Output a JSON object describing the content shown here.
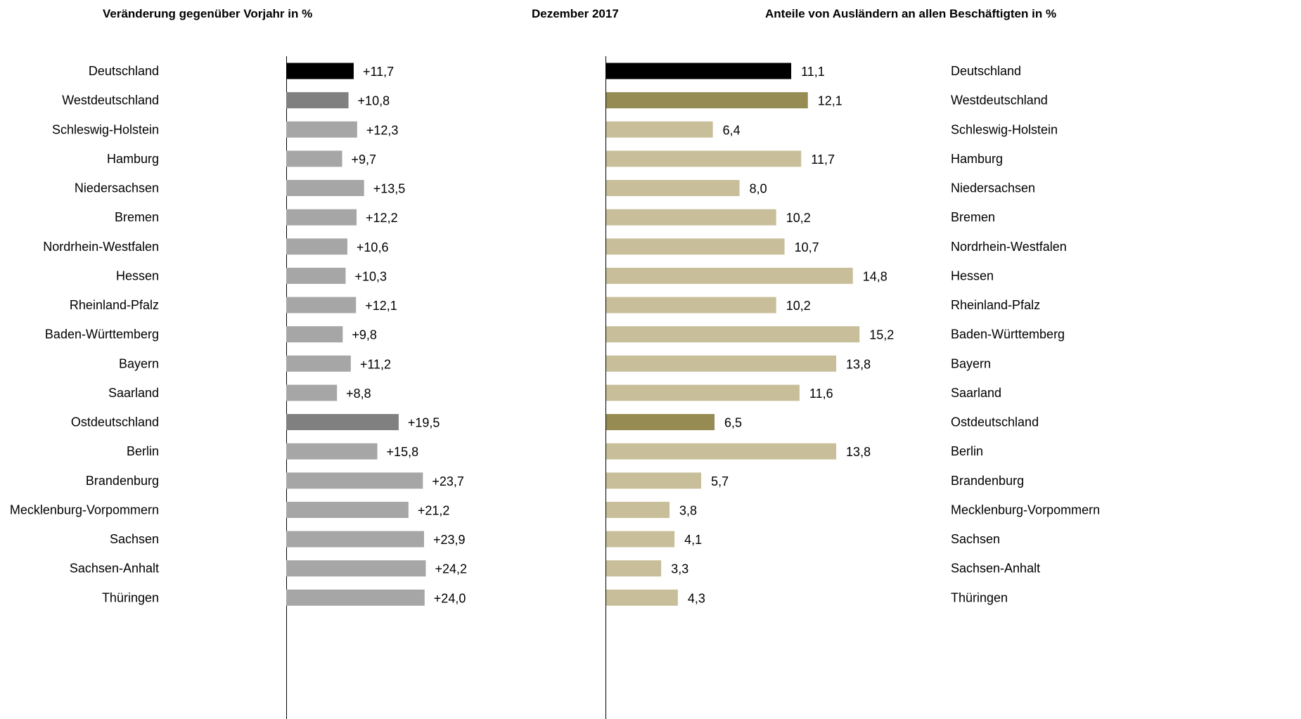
{
  "titles": {
    "left": "Veränderung gegenüber Vorjahr in %",
    "center": "Dezember 2017",
    "right": "Anteile von Ausländern an allen Beschäftigten in %"
  },
  "colors": {
    "total": "#000000",
    "region": "#808080",
    "state_left": "#a6a6a6",
    "region_right": "#968b52",
    "state_right": "#c8bf9a"
  },
  "chart_data": [
    {
      "type": "bar",
      "orientation": "horizontal",
      "title": "Veränderung gegenüber Vorjahr in %",
      "categories": [
        "Deutschland",
        "Westdeutschland",
        "Schleswig-Holstein",
        "Hamburg",
        "Niedersachsen",
        "Bremen",
        "Nordrhein-Westfalen",
        "Hessen",
        "Rheinland-Pfalz",
        "Baden-Württemberg",
        "Bayern",
        "Saarland",
        "Ostdeutschland",
        "Berlin",
        "Brandenburg",
        "Mecklenburg-Vorpommern",
        "Sachsen",
        "Sachsen-Anhalt",
        "Thüringen"
      ],
      "values": [
        11.7,
        10.8,
        12.3,
        9.7,
        13.5,
        12.2,
        10.6,
        10.3,
        12.1,
        9.8,
        11.2,
        8.8,
        19.5,
        15.8,
        23.7,
        21.2,
        23.9,
        24.2,
        24.0
      ],
      "labels": [
        "+11,7",
        "+10,8",
        "+12,3",
        "+9,7",
        "+13,5",
        "+12,2",
        "+10,6",
        "+10,3",
        "+12,1",
        "+9,8",
        "+11,2",
        "+8,8",
        "+19,5",
        "+15,8",
        "+23,7",
        "+21,2",
        "+23,9",
        "+24,2",
        "+24,0"
      ],
      "kinds": [
        "total",
        "region",
        "state",
        "state",
        "state",
        "state",
        "state",
        "state",
        "state",
        "state",
        "state",
        "state",
        "region",
        "state",
        "state",
        "state",
        "state",
        "state",
        "state"
      ]
    },
    {
      "type": "bar",
      "orientation": "horizontal",
      "title": "Anteile von Ausländern an allen Beschäftigten in %",
      "categories": [
        "Deutschland",
        "Westdeutschland",
        "Schleswig-Holstein",
        "Hamburg",
        "Niedersachsen",
        "Bremen",
        "Nordrhein-Westfalen",
        "Hessen",
        "Rheinland-Pfalz",
        "Baden-Württemberg",
        "Bayern",
        "Saarland",
        "Ostdeutschland",
        "Berlin",
        "Brandenburg",
        "Mecklenburg-Vorpommern",
        "Sachsen",
        "Sachsen-Anhalt",
        "Thüringen"
      ],
      "values": [
        11.1,
        12.1,
        6.4,
        11.7,
        8.0,
        10.2,
        10.7,
        14.8,
        10.2,
        15.2,
        13.8,
        11.6,
        6.5,
        13.8,
        5.7,
        3.8,
        4.1,
        3.3,
        4.3
      ],
      "labels": [
        "11,1",
        "12,1",
        "6,4",
        "11,7",
        "8,0",
        "10,2",
        "10,7",
        "14,8",
        "10,2",
        "15,2",
        "13,8",
        "11,6",
        "6,5",
        "13,8",
        "5,7",
        "3,8",
        "4,1",
        "3,3",
        "4,3"
      ],
      "kinds": [
        "total",
        "region",
        "state",
        "state",
        "state",
        "state",
        "state",
        "state",
        "state",
        "state",
        "state",
        "state",
        "region",
        "state",
        "state",
        "state",
        "state",
        "state",
        "state"
      ]
    }
  ]
}
